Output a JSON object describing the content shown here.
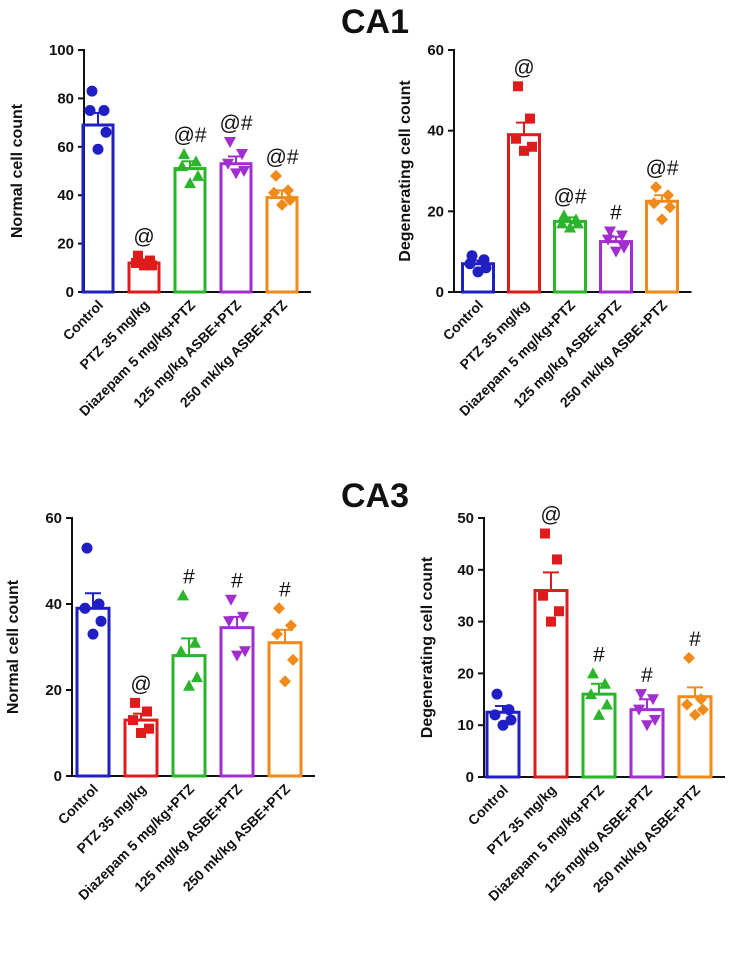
{
  "section_titles": [
    "CA1",
    "CA3"
  ],
  "chart_data": [
    {
      "type": "bar",
      "section": "CA1",
      "title": "",
      "ylabel": "Normal cell count",
      "xlabel": "",
      "ylim": [
        0,
        100
      ],
      "yticks": [
        0,
        20,
        40,
        60,
        80,
        100
      ],
      "categories": [
        "Control",
        "PTZ 35 mg/kg",
        "Diazepam 5 mg/kg+PTZ",
        "125 mg/kg ASBE+PTZ",
        "250 mk/kg ASBE+PTZ"
      ],
      "colors": [
        "#1f1fc4",
        "#e01b1b",
        "#2ab52a",
        "#a22ecf",
        "#f08a1a"
      ],
      "markers": [
        "circle",
        "square",
        "triangle",
        "triangle-down",
        "diamond"
      ],
      "values": [
        69,
        12,
        51,
        53,
        39
      ],
      "sem": [
        5,
        1.5,
        3,
        3,
        3
      ],
      "points": [
        [
          83,
          75,
          75,
          66,
          59
        ],
        [
          15,
          13,
          12,
          11,
          11
        ],
        [
          57,
          54,
          52,
          48,
          45
        ],
        [
          62,
          57,
          53,
          50,
          49
        ],
        [
          48,
          42,
          41,
          38,
          36
        ]
      ],
      "annotations": [
        "",
        "@",
        "@#",
        "@#",
        "@#"
      ]
    },
    {
      "type": "bar",
      "section": "CA1",
      "title": "",
      "ylabel": "Degenerating cell count",
      "xlabel": "",
      "ylim": [
        0,
        60
      ],
      "yticks": [
        0,
        20,
        40,
        60
      ],
      "categories": [
        "Control",
        "PTZ 35 mg/kg",
        "Diazepam 5 mg/kg+PTZ",
        "125 mg/kg ASBE+PTZ",
        "250 mk/kg ASBE+PTZ"
      ],
      "colors": [
        "#1f1fc4",
        "#e01b1b",
        "#2ab52a",
        "#a22ecf",
        "#f08a1a"
      ],
      "markers": [
        "circle",
        "square",
        "triangle",
        "triangle-down",
        "diamond"
      ],
      "values": [
        7,
        39,
        17.5,
        12.5,
        22.5
      ],
      "sem": [
        0.8,
        3,
        1,
        1.2,
        1.5
      ],
      "points": [
        [
          9,
          8,
          7,
          6,
          5
        ],
        [
          51,
          43,
          38,
          36,
          35
        ],
        [
          19,
          18,
          17,
          17,
          16
        ],
        [
          15,
          14,
          13,
          11,
          10
        ],
        [
          26,
          24,
          22,
          21,
          18
        ]
      ],
      "annotations": [
        "",
        "@",
        "@#",
        "#",
        "@#"
      ]
    },
    {
      "type": "bar",
      "section": "CA3",
      "title": "",
      "ylabel": "Normal cell count",
      "xlabel": "",
      "ylim": [
        0,
        60
      ],
      "yticks": [
        0,
        20,
        40,
        60
      ],
      "categories": [
        "Control",
        "PTZ 35 mg/kg",
        "Diazepam 5 mg/kg+PTZ",
        "125 mg/kg ASBE+PTZ",
        "250 mk/kg ASBE+PTZ"
      ],
      "colors": [
        "#1f1fc4",
        "#e01b1b",
        "#2ab52a",
        "#a22ecf",
        "#f08a1a"
      ],
      "markers": [
        "circle",
        "square",
        "triangle",
        "triangle-down",
        "diamond"
      ],
      "values": [
        39,
        13,
        28,
        34.5,
        31
      ],
      "sem": [
        3.5,
        1.5,
        4,
        2.5,
        3
      ],
      "points": [
        [
          53,
          40,
          39,
          36,
          33
        ],
        [
          17,
          15,
          13,
          11,
          10
        ],
        [
          42,
          31,
          29,
          23,
          21
        ],
        [
          41,
          37,
          36,
          29,
          28
        ],
        [
          39,
          35,
          33,
          27,
          22
        ]
      ],
      "annotations": [
        "",
        "@",
        "#",
        "#",
        "#"
      ]
    },
    {
      "type": "bar",
      "section": "CA3",
      "title": "",
      "ylabel": "Degenerating cell count",
      "xlabel": "",
      "ylim": [
        0,
        50
      ],
      "yticks": [
        0,
        10,
        20,
        30,
        40,
        50
      ],
      "categories": [
        "Control",
        "PTZ 35 mg/kg",
        "Diazepam 5 mg/kg+PTZ",
        "125 mg/kg ASBE+PTZ",
        "250 mk/kg ASBE+PTZ"
      ],
      "colors": [
        "#1f1fc4",
        "#e01b1b",
        "#2ab52a",
        "#a22ecf",
        "#f08a1a"
      ],
      "markers": [
        "circle",
        "square",
        "triangle",
        "triangle-down",
        "diamond"
      ],
      "values": [
        12.5,
        36,
        16,
        13,
        15.5
      ],
      "sem": [
        1.2,
        3.5,
        2,
        2,
        1.8
      ],
      "points": [
        [
          16,
          13,
          12,
          11,
          10
        ],
        [
          47,
          42,
          35,
          32,
          30
        ],
        [
          20,
          18,
          16,
          14,
          12
        ],
        [
          16,
          15,
          13,
          11,
          10
        ],
        [
          23,
          15,
          14,
          13,
          12
        ]
      ],
      "annotations": [
        "",
        "@",
        "#",
        "#",
        "#"
      ]
    }
  ]
}
